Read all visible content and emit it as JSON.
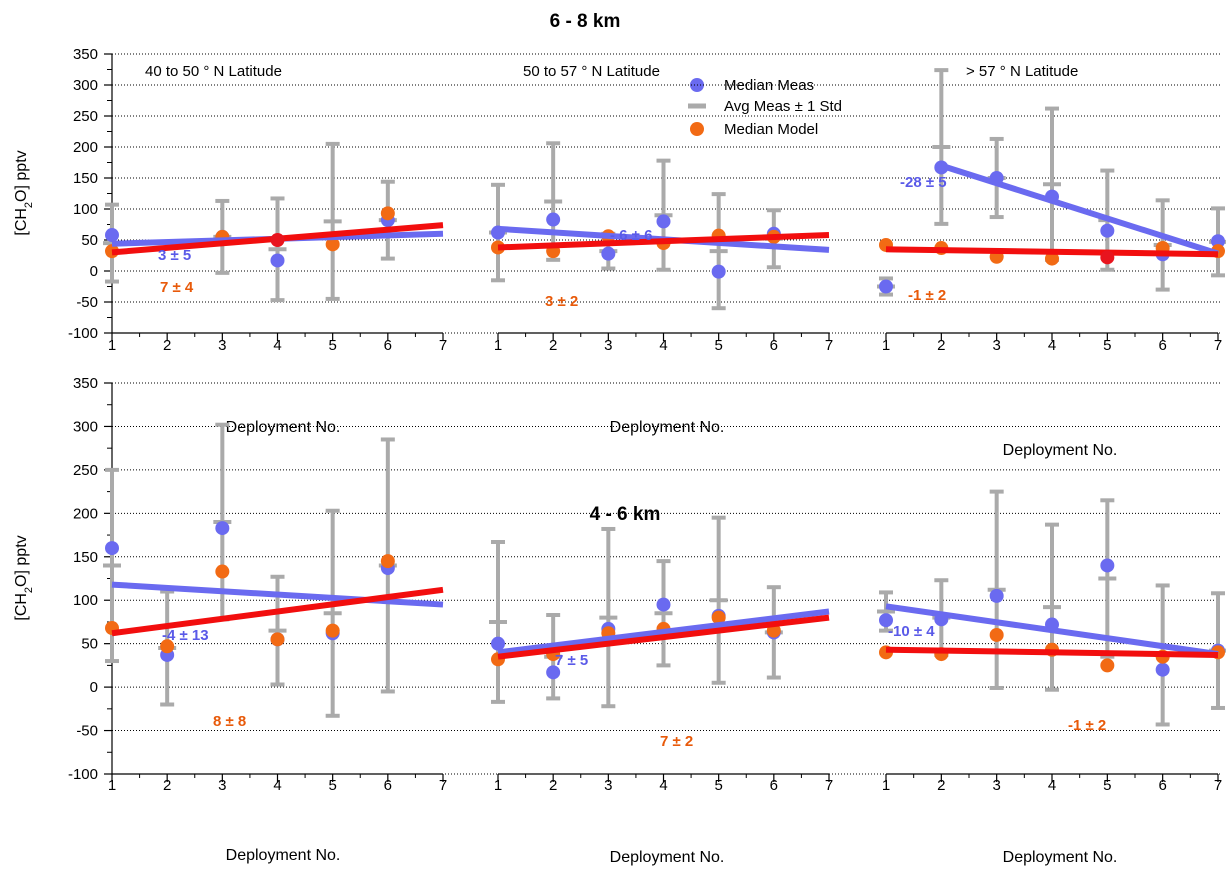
{
  "chart_data": [
    {
      "type": "scatter",
      "title": "6 - 8 km",
      "row": 0,
      "ylabel": "[CH2O] pptv",
      "xlabel": "Deployment No.",
      "ylim": [
        -100,
        350
      ],
      "yticks": [
        -100,
        -50,
        0,
        50,
        100,
        150,
        200,
        250,
        300,
        350
      ],
      "xlim": [
        1,
        7
      ],
      "xticks": [
        1,
        2,
        3,
        4,
        5,
        6,
        7
      ],
      "grid": "dotted horizontal",
      "legend": {
        "position": "top-center",
        "entries": [
          {
            "label": "Median Meas",
            "symbol": "circle",
            "color": "#6a6af0"
          },
          {
            "label": "Avg Meas ± 1 Std",
            "symbol": "bar",
            "color": "#aaaaaa"
          },
          {
            "label": "Median Model",
            "symbol": "circle",
            "color": "#f26a14"
          }
        ]
      },
      "panels": [
        {
          "region": "40 to 50 ° N Latitude",
          "avg_meas": [
            {
              "x": 1,
              "avg": 45,
              "std": 62
            },
            {
              "x": 3,
              "avg": 55,
              "std": 58
            },
            {
              "x": 4,
              "avg": 35,
              "std": 82
            },
            {
              "x": 5,
              "avg": 80,
              "std": 125
            },
            {
              "x": 6,
              "avg": 82,
              "std": 62
            }
          ],
          "median_meas": [
            [
              1,
              58
            ],
            [
              3,
              55
            ],
            [
              4,
              17
            ],
            [
              6,
              82
            ]
          ],
          "median_model": [
            [
              1,
              32
            ],
            [
              3,
              55
            ],
            [
              5,
              43
            ],
            [
              6,
              93
            ]
          ],
          "model_inside": [
            [
              4,
              50
            ]
          ],
          "meas_fit": [
            [
              1,
              44
            ],
            [
              7,
              60
            ]
          ],
          "model_fit": [
            [
              1,
              30
            ],
            [
              7,
              74
            ]
          ],
          "meas_slope": "3 ± 5",
          "model_slope": "7 ± 4"
        },
        {
          "region": "50 to 57 ° N Latitude",
          "avg_meas": [
            {
              "x": 1,
              "avg": 62,
              "std": 77
            },
            {
              "x": 2,
              "avg": 112,
              "std": 94
            },
            {
              "x": 3,
              "avg": 32,
              "std": 28
            },
            {
              "x": 4,
              "avg": 90,
              "std": 88
            },
            {
              "x": 5,
              "avg": 32,
              "std": 92
            },
            {
              "x": 6,
              "avg": 52,
              "std": 46
            }
          ],
          "median_meas": [
            [
              1,
              62
            ],
            [
              2,
              83
            ],
            [
              3,
              28
            ],
            [
              4,
              80
            ],
            [
              5,
              -1
            ],
            [
              6,
              60
            ]
          ],
          "median_model": [
            [
              1,
              38
            ],
            [
              2,
              32
            ],
            [
              3,
              56
            ],
            [
              4,
              45
            ],
            [
              5,
              57
            ],
            [
              6,
              55
            ]
          ],
          "model_inside": [],
          "meas_fit": [
            [
              1,
              68
            ],
            [
              7,
              34
            ]
          ],
          "model_fit": [
            [
              1,
              38
            ],
            [
              7,
              58
            ]
          ],
          "meas_slope": "- 6 ± 6",
          "model_slope": "3 ± 2"
        },
        {
          "region": "> 57 ° N Latitude",
          "avg_meas": [
            {
              "x": 1,
              "avg": -25,
              "std": 13
            },
            {
              "x": 2,
              "avg": 200,
              "std": 124
            },
            {
              "x": 3,
              "avg": 150,
              "std": 63
            },
            {
              "x": 4,
              "avg": 140,
              "std": 122
            },
            {
              "x": 5,
              "avg": 82,
              "std": 80
            },
            {
              "x": 6,
              "avg": 42,
              "std": 72
            },
            {
              "x": 7,
              "avg": 47,
              "std": 54
            }
          ],
          "median_meas": [
            [
              1,
              -25
            ],
            [
              2,
              167
            ],
            [
              3,
              150
            ],
            [
              4,
              120
            ],
            [
              5,
              65
            ],
            [
              6,
              27
            ],
            [
              7,
              48
            ]
          ],
          "median_model": [
            [
              1,
              42
            ],
            [
              2,
              37
            ],
            [
              3,
              23
            ],
            [
              4,
              20
            ],
            [
              6,
              37
            ],
            [
              7,
              32
            ]
          ],
          "model_inside": [
            [
              5,
              22
            ]
          ],
          "meas_fit": [
            [
              2,
              170
            ],
            [
              7,
              28
            ]
          ],
          "model_fit": [
            [
              1,
              35
            ],
            [
              7,
              27
            ]
          ],
          "meas_slope": "-28 ± 5",
          "model_slope": "-1 ± 2"
        }
      ]
    },
    {
      "type": "scatter",
      "title": "4 - 6 km",
      "row": 1,
      "ylabel": "[CH2O] pptv",
      "xlabel": "Deployment No.",
      "ylim": [
        -100,
        350
      ],
      "yticks": [
        -100,
        -50,
        0,
        50,
        100,
        150,
        200,
        250,
        300,
        350
      ],
      "xlim": [
        1,
        7
      ],
      "xticks": [
        1,
        2,
        3,
        4,
        5,
        6,
        7
      ],
      "grid": "dotted horizontal",
      "panels": [
        {
          "region": "",
          "avg_meas": [
            {
              "x": 1,
              "avg": 140,
              "std": 110
            },
            {
              "x": 2,
              "avg": 45,
              "std": 65
            },
            {
              "x": 3,
              "avg": 190,
              "std": 112
            },
            {
              "x": 4,
              "avg": 65,
              "std": 62
            },
            {
              "x": 5,
              "avg": 85,
              "std": 118
            },
            {
              "x": 6,
              "avg": 140,
              "std": 145
            }
          ],
          "median_meas": [
            [
              1,
              160
            ],
            [
              2,
              37
            ],
            [
              3,
              183
            ],
            [
              4,
              55
            ],
            [
              5,
              62
            ],
            [
              6,
              137
            ]
          ],
          "median_model": [
            [
              1,
              68
            ],
            [
              2,
              47
            ],
            [
              3,
              133
            ],
            [
              4,
              55
            ],
            [
              5,
              65
            ],
            [
              6,
              145
            ]
          ],
          "model_inside": [],
          "meas_fit": [
            [
              1,
              118
            ],
            [
              7,
              95
            ]
          ],
          "model_fit": [
            [
              1,
              62
            ],
            [
              7,
              112
            ]
          ],
          "meas_slope": "-4 ± 13",
          "model_slope": "8 ± 8"
        },
        {
          "region": "",
          "avg_meas": [
            {
              "x": 1,
              "avg": 75,
              "std": 92
            },
            {
              "x": 2,
              "avg": 35,
              "std": 48
            },
            {
              "x": 3,
              "avg": 80,
              "std": 102
            },
            {
              "x": 4,
              "avg": 85,
              "std": 60
            },
            {
              "x": 5,
              "avg": 100,
              "std": 95
            },
            {
              "x": 6,
              "avg": 63,
              "std": 52
            }
          ],
          "median_meas": [
            [
              1,
              50
            ],
            [
              2,
              17
            ],
            [
              3,
              67
            ],
            [
              4,
              95
            ],
            [
              5,
              82
            ],
            [
              6,
              63
            ]
          ],
          "median_model": [
            [
              1,
              32
            ],
            [
              2,
              38
            ],
            [
              3,
              62
            ],
            [
              4,
              67
            ],
            [
              5,
              80
            ],
            [
              6,
              65
            ]
          ],
          "model_inside": [],
          "meas_fit": [
            [
              1,
              40
            ],
            [
              7,
              87
            ]
          ],
          "model_fit": [
            [
              1,
              35
            ],
            [
              7,
              80
            ]
          ],
          "meas_slope": "7 ± 5",
          "model_slope": "7 ± 2"
        },
        {
          "region": "",
          "avg_meas": [
            {
              "x": 1,
              "avg": 87,
              "std": 22
            },
            {
              "x": 2,
              "avg": 80,
              "std": 43
            },
            {
              "x": 3,
              "avg": 112,
              "std": 113
            },
            {
              "x": 4,
              "avg": 92,
              "std": 95
            },
            {
              "x": 5,
              "avg": 125,
              "std": 90
            },
            {
              "x": 6,
              "avg": 37,
              "std": 80
            },
            {
              "x": 7,
              "avg": 42,
              "std": 66
            }
          ],
          "median_meas": [
            [
              1,
              77
            ],
            [
              2,
              78
            ],
            [
              3,
              105
            ],
            [
              4,
              72
            ],
            [
              5,
              140
            ],
            [
              6,
              20
            ],
            [
              7,
              42
            ]
          ],
          "median_model": [
            [
              1,
              40
            ],
            [
              2,
              38
            ],
            [
              3,
              60
            ],
            [
              4,
              43
            ],
            [
              5,
              25
            ],
            [
              6,
              35
            ],
            [
              7,
              40
            ]
          ],
          "model_inside": [],
          "meas_fit": [
            [
              1,
              93
            ],
            [
              7,
              38
            ]
          ],
          "model_fit": [
            [
              1,
              43
            ],
            [
              7,
              37
            ]
          ],
          "meas_slope": "-10 ± 4",
          "model_slope": "-1 ± 2"
        }
      ]
    }
  ],
  "colors": {
    "meas": "#6a6af0",
    "model": "#f26a14",
    "model_inside": "#e8141e",
    "meas_fit": "#6a6af0",
    "model_fit": "#f20e0e",
    "error_bar": "#aaaaaa",
    "meas_label": "#5a5ae8",
    "model_label": "#e85a0a"
  }
}
